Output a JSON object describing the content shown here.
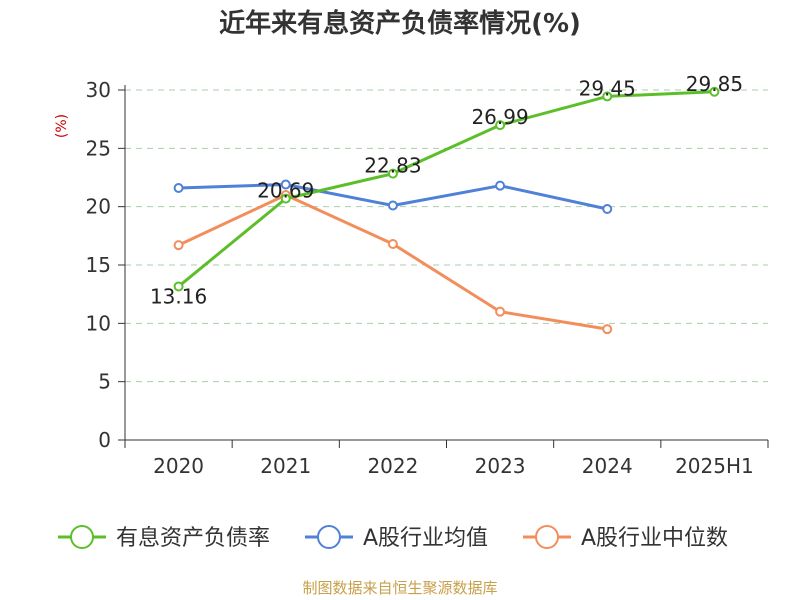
{
  "chart_data": {
    "type": "line",
    "title": "近年来有息资产负债率情况(%)",
    "ylabel": "(%)",
    "categories": [
      "2020",
      "2021",
      "2022",
      "2023",
      "2024",
      "2025H1"
    ],
    "ylim": [
      0,
      30
    ],
    "yticks": [
      0,
      5,
      10,
      15,
      20,
      25,
      30
    ],
    "grid": true,
    "legend_position": "bottom",
    "series": [
      {
        "name": "有息资产负债率",
        "color": "#5cbf2a",
        "values": [
          13.16,
          20.69,
          22.83,
          26.99,
          29.45,
          29.85
        ],
        "labels": [
          "13.16",
          "20.69",
          "22.83",
          "26.99",
          "29.45",
          "29.85"
        ]
      },
      {
        "name": "A股行业均值",
        "color": "#4f81d6",
        "values": [
          21.6,
          21.9,
          20.1,
          21.8,
          19.8,
          null
        ]
      },
      {
        "name": "A股行业中位数",
        "color": "#f28e5c",
        "values": [
          16.7,
          21.0,
          16.8,
          11.0,
          9.5,
          null
        ]
      }
    ],
    "source": "制图数据来自恒生聚源数据库",
    "source_color": "#c8a04a",
    "ylabel_color": "#cc0000"
  }
}
